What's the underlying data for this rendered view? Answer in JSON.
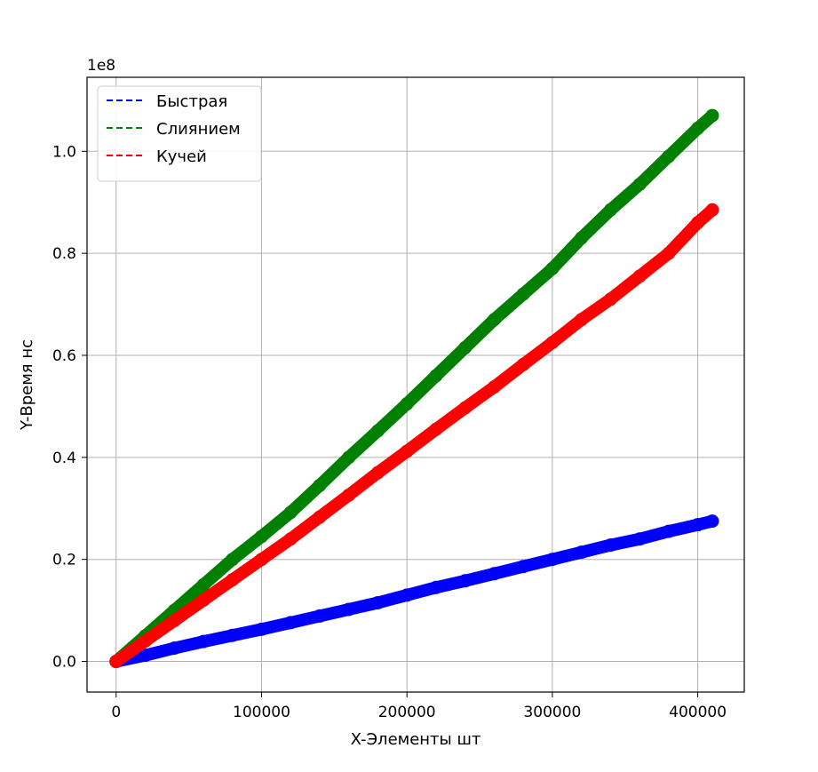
{
  "chart_data": {
    "type": "scatter",
    "xlabel": "X-Элементы шт",
    "ylabel": "Y-Время нс",
    "y_offset_label": "1e8",
    "xlim": [
      -20000,
      432000
    ],
    "ylim": [
      -0.06,
      1.145
    ],
    "x_ticks": [
      0,
      100000,
      200000,
      300000,
      400000
    ],
    "x_tick_labels": [
      "0",
      "100000",
      "200000",
      "300000",
      "400000"
    ],
    "y_ticks": [
      0.0,
      0.2,
      0.4,
      0.6,
      0.8,
      1.0
    ],
    "y_tick_labels": [
      "0.0",
      "0.2",
      "0.4",
      "0.6",
      "0.8",
      "1.0"
    ],
    "grid": true,
    "legend_position": "top-left",
    "series": [
      {
        "name": "Быстрая",
        "color": "#0000ff",
        "x": [
          0,
          20000,
          40000,
          60000,
          80000,
          100000,
          120000,
          140000,
          160000,
          180000,
          200000,
          220000,
          240000,
          260000,
          280000,
          300000,
          320000,
          340000,
          360000,
          380000,
          400000,
          410000
        ],
        "y": [
          0.0,
          0.012,
          0.026,
          0.039,
          0.051,
          0.063,
          0.076,
          0.089,
          0.102,
          0.115,
          0.13,
          0.145,
          0.158,
          0.172,
          0.186,
          0.2,
          0.214,
          0.228,
          0.24,
          0.255,
          0.268,
          0.275
        ]
      },
      {
        "name": "Слиянием",
        "color": "#008000",
        "x": [
          0,
          20000,
          40000,
          60000,
          80000,
          100000,
          120000,
          140000,
          160000,
          180000,
          200000,
          220000,
          240000,
          260000,
          280000,
          300000,
          320000,
          340000,
          360000,
          380000,
          400000,
          410000
        ],
        "y": [
          0.0,
          0.05,
          0.1,
          0.15,
          0.2,
          0.245,
          0.292,
          0.345,
          0.4,
          0.452,
          0.505,
          0.56,
          0.615,
          0.67,
          0.72,
          0.77,
          0.83,
          0.885,
          0.935,
          0.99,
          1.045,
          1.07
        ]
      },
      {
        "name": "Кучей",
        "color": "#ff0000",
        "x": [
          0,
          20000,
          40000,
          60000,
          80000,
          100000,
          120000,
          140000,
          160000,
          180000,
          200000,
          220000,
          240000,
          260000,
          280000,
          300000,
          320000,
          340000,
          360000,
          380000,
          400000,
          410000
        ],
        "y": [
          0.0,
          0.04,
          0.08,
          0.12,
          0.16,
          0.2,
          0.24,
          0.283,
          0.326,
          0.37,
          0.412,
          0.455,
          0.497,
          0.538,
          0.582,
          0.625,
          0.67,
          0.71,
          0.755,
          0.8,
          0.86,
          0.885
        ]
      }
    ]
  }
}
